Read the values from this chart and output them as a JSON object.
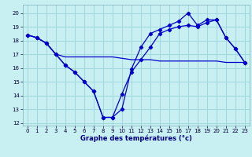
{
  "title": "Graphe des températures (°c)",
  "background_color": "#c8eff1",
  "grid_color": "#a0d8dc",
  "line_color": "#0000cc",
  "xlim": [
    -0.5,
    23.5
  ],
  "ylim": [
    11.8,
    20.6
  ],
  "yticks": [
    12,
    13,
    14,
    15,
    16,
    17,
    18,
    19,
    20
  ],
  "xticks": [
    0,
    1,
    2,
    3,
    4,
    5,
    6,
    7,
    8,
    9,
    10,
    11,
    12,
    13,
    14,
    15,
    16,
    17,
    18,
    19,
    20,
    21,
    22,
    23
  ],
  "line1_x": [
    0,
    1,
    2,
    3,
    4,
    5,
    6,
    7,
    8,
    9,
    10,
    11,
    12,
    13,
    14,
    15,
    16,
    17,
    18,
    19,
    20,
    21,
    22,
    23
  ],
  "line1_y": [
    18.4,
    18.2,
    17.8,
    17.0,
    16.2,
    15.7,
    15.0,
    14.3,
    12.4,
    12.4,
    13.0,
    15.9,
    17.5,
    18.5,
    18.8,
    19.1,
    19.4,
    20.0,
    19.1,
    19.5,
    19.5,
    18.2,
    17.4,
    16.4
  ],
  "line2_x": [
    0,
    1,
    2,
    3,
    4,
    5,
    6,
    7,
    8,
    9,
    10,
    11,
    12,
    13,
    14,
    15,
    16,
    17,
    18,
    19,
    20,
    21,
    22,
    23
  ],
  "line2_y": [
    18.4,
    18.2,
    17.8,
    17.0,
    16.8,
    16.8,
    16.8,
    16.8,
    16.8,
    16.8,
    16.7,
    16.6,
    16.6,
    16.6,
    16.5,
    16.5,
    16.5,
    16.5,
    16.5,
    16.5,
    16.5,
    16.4,
    16.4,
    16.4
  ],
  "line3_x": [
    0,
    1,
    2,
    3,
    4,
    5,
    6,
    7,
    8,
    9,
    10,
    11,
    12,
    13,
    14,
    15,
    16,
    17,
    18,
    19,
    20,
    21,
    22,
    23
  ],
  "line3_y": [
    18.4,
    18.2,
    17.8,
    17.0,
    16.2,
    15.7,
    15.0,
    14.3,
    12.4,
    12.4,
    14.1,
    15.7,
    16.6,
    17.5,
    18.5,
    18.8,
    19.0,
    19.1,
    19.0,
    19.3,
    19.5,
    18.2,
    17.4,
    16.4
  ]
}
